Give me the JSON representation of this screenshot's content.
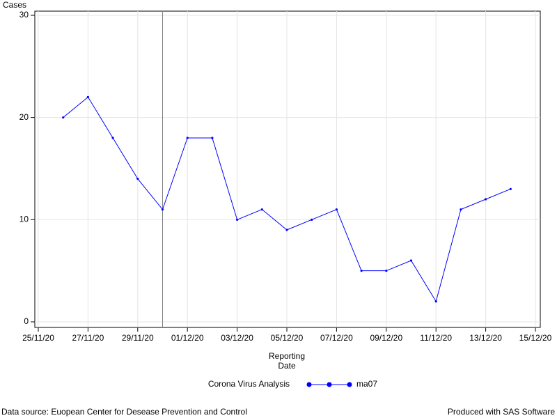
{
  "chart_data": {
    "type": "line",
    "ylabel": "Cases",
    "xlabel": "Reporting Date",
    "x": [
      "26/11/20",
      "27/11/20",
      "28/11/20",
      "29/11/20",
      "30/11/20",
      "01/12/20",
      "02/12/20",
      "03/12/20",
      "04/12/20",
      "05/12/20",
      "06/12/20",
      "07/12/20",
      "08/12/20",
      "09/12/20",
      "10/12/20",
      "11/12/20",
      "12/12/20",
      "13/12/20",
      "14/12/20"
    ],
    "series": [
      {
        "name": "ma07",
        "color": "#0000ff",
        "values": [
          20,
          22,
          18,
          14,
          11,
          18,
          18,
          10,
          11,
          9,
          10,
          11,
          5,
          5,
          6,
          2,
          11,
          12,
          13
        ]
      }
    ],
    "xlim": [
      "25/11/20",
      "15/12/20"
    ],
    "xticks": [
      "25/11/20",
      "27/11/20",
      "29/11/20",
      "01/12/20",
      "03/12/20",
      "05/12/20",
      "07/12/20",
      "09/12/20",
      "11/12/20",
      "13/12/20",
      "15/12/20"
    ],
    "ylim": [
      0,
      30
    ],
    "yticks": [
      0,
      10,
      20,
      30
    ],
    "grid": true,
    "refline_x": "30/11/20",
    "legend_title": "Corona Virus Analysis",
    "footnote_left": "Data source: Euopean Center for Desease Prevention and Control",
    "footnote_right": "Produced with SAS Software"
  }
}
